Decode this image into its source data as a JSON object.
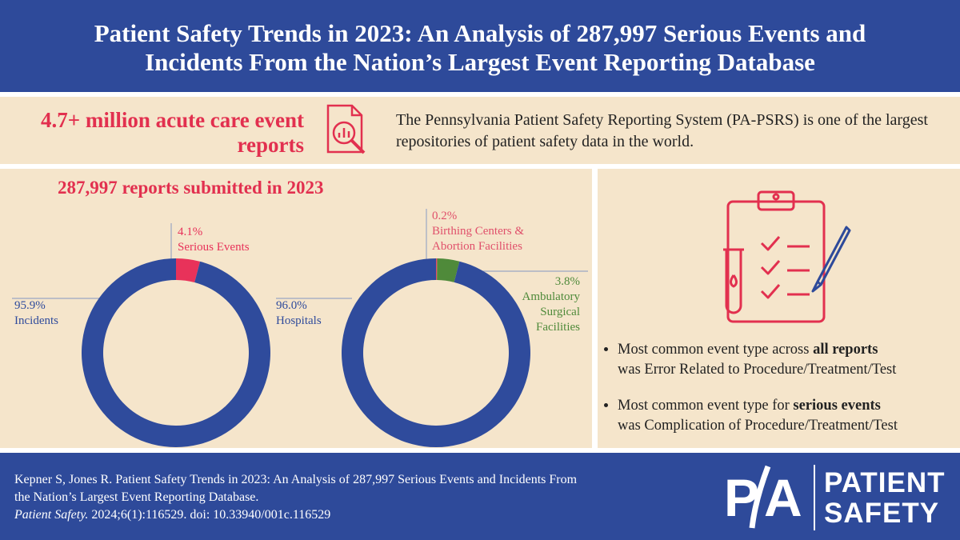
{
  "header": {
    "title": "Patient Safety Trends in 2023: An Analysis of 287,997 Serious Events and Incidents From the Nation’s Largest Event Reporting Database"
  },
  "intro": {
    "stat": "4.7+ million acute care event reports",
    "description": "The Pennsylvania Patient Safety Reporting System (PA-PSRS) is one of the largest repositories of patient safety data in the world."
  },
  "section_title": "287,997 reports submitted in 2023",
  "chart_data": [
    {
      "type": "pie",
      "categories": [
        "Serious Events",
        "Incidents"
      ],
      "values": [
        4.1,
        95.9
      ],
      "value_labels": [
        "4.1%",
        "95.9%"
      ],
      "colors": [
        "#e8325a",
        "#2f4b9c"
      ]
    },
    {
      "type": "pie",
      "categories": [
        "Birthing Centers & Abortion Facilities",
        "Ambulatory Surgical Facilities",
        "Hospitals"
      ],
      "values": [
        0.2,
        3.8,
        96.0
      ],
      "value_labels": [
        "0.2%",
        "3.8%",
        "96.0%"
      ],
      "colors": [
        "#e0506b",
        "#4f8a3a",
        "#2f4b9c"
      ]
    }
  ],
  "findings": [
    {
      "before": "Most common event type across",
      "bold": "all reports",
      "after": "was Error Related to Procedure/Treatment/Test"
    },
    {
      "before": "Most common event type for",
      "bold": "serious events",
      "after": "was Complication of Procedure/Treatment/Test"
    }
  ],
  "citation": {
    "text": "Kepner S, Jones R. Patient Safety Trends in 2023: An Analysis of 287,997 Serious Events and Incidents From the Nation’s Largest Event Reporting Database.",
    "journal": "Patient Safety.",
    "details": "2024;6(1):116529. doi: 10.33940/001c.116529"
  },
  "logo": {
    "letters": [
      "P",
      "A"
    ],
    "words": [
      "PATIENT",
      "SAFETY"
    ]
  }
}
